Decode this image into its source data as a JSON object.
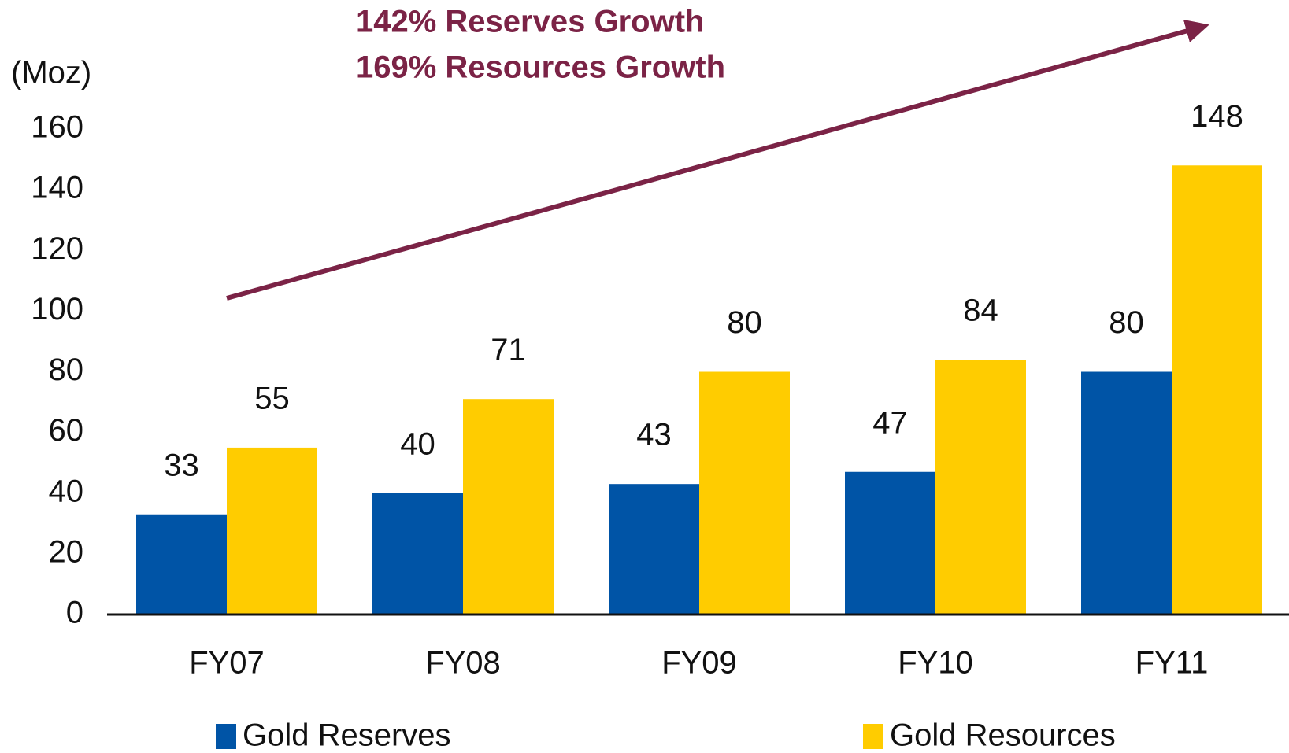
{
  "chart_data": {
    "type": "bar",
    "annotations": [
      "142% Reserves Growth",
      "169% Resources Growth"
    ],
    "y_label": "(Moz)",
    "categories": [
      "FY07",
      "FY08",
      "FY09",
      "FY10",
      "FY11"
    ],
    "series": [
      {
        "name": "Gold Reserves",
        "color": "#0054a6",
        "values": [
          33,
          40,
          43,
          47,
          80
        ]
      },
      {
        "name": "Gold Resources",
        "color": "#ffcc00",
        "values": [
          55,
          71,
          80,
          84,
          148
        ]
      }
    ],
    "ylim": [
      0,
      160
    ],
    "yticks": [
      0,
      20,
      40,
      60,
      80,
      100,
      120,
      140,
      160
    ],
    "grid": false,
    "legend": "bottom",
    "annotation_color": "#7b2346"
  }
}
